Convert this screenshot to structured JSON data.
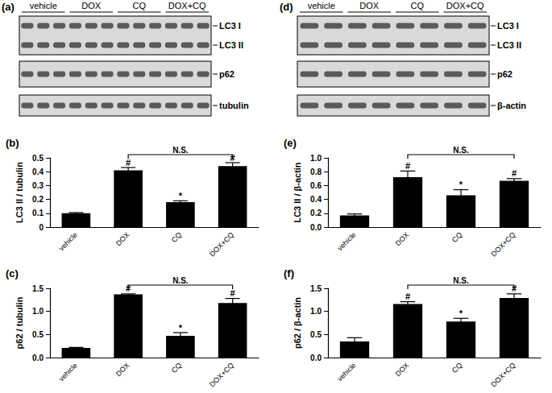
{
  "chart_data": [
    {
      "type": "bar",
      "panel": "(b)",
      "ylabel": "LC3 II / tubulin",
      "categories": [
        "vehicle",
        "DOX",
        "CQ",
        "DOX+CQ"
      ],
      "values": [
        0.1,
        0.41,
        0.18,
        0.44
      ],
      "errors": [
        0.005,
        0.02,
        0.01,
        0.025
      ],
      "color": "#000000",
      "ylim": [
        0,
        0.5
      ],
      "yticks": [
        0,
        0.1,
        0.2,
        0.3,
        0.4,
        0.5
      ],
      "grid": false,
      "marks": [
        null,
        "#",
        "*",
        "#"
      ],
      "comparison": {
        "from": "DOX",
        "to": "DOX+CQ",
        "label": "N.S."
      }
    },
    {
      "type": "bar",
      "panel": "(c)",
      "ylabel": "p62 / tubulin",
      "categories": [
        "vehicle",
        "DOX",
        "CQ",
        "DOX+CQ"
      ],
      "values": [
        0.21,
        1.37,
        0.47,
        1.18
      ],
      "errors": [
        0.01,
        0.01,
        0.07,
        0.1
      ],
      "color": "#000000",
      "ylim": [
        0,
        1.5
      ],
      "yticks": [
        {
          "value": 0,
          "label": "0.0"
        },
        0.5,
        {
          "value": 1,
          "label": "1.0"
        },
        1.5
      ],
      "grid": false,
      "marks": [
        null,
        "#",
        "*",
        "#"
      ],
      "comparison": {
        "from": "DOX",
        "to": "DOX+CQ",
        "label": "N.S."
      }
    },
    {
      "type": "bar",
      "panel": "(e)",
      "ylabel": "LC3 II / β-actin",
      "categories": [
        "vehicle",
        "DOX",
        "CQ",
        "DOX+CQ"
      ],
      "values": [
        0.17,
        0.72,
        0.46,
        0.67
      ],
      "errors": [
        0.02,
        0.09,
        0.08,
        0.03
      ],
      "color": "#000000",
      "ylim": [
        0,
        1
      ],
      "yticks": [
        {
          "value": 0,
          "label": "0.0"
        },
        0.2,
        0.4,
        0.6,
        0.8,
        {
          "value": 1,
          "label": "1.0"
        }
      ],
      "grid": false,
      "marks": [
        null,
        "#",
        "*",
        "#"
      ],
      "comparison": {
        "from": "DOX",
        "to": "DOX+CQ",
        "label": "N.S."
      }
    },
    {
      "type": "bar",
      "panel": "(f)",
      "ylabel": "p62 / β-actin",
      "categories": [
        "vehicle",
        "DOX",
        "CQ",
        "DOX+CQ"
      ],
      "values": [
        0.35,
        1.16,
        0.78,
        1.29
      ],
      "errors": [
        0.08,
        0.05,
        0.07,
        0.09
      ],
      "color": "#000000",
      "ylim": [
        0,
        1.5
      ],
      "yticks": [
        {
          "value": 0,
          "label": "0.0"
        },
        0.5,
        {
          "value": 1,
          "label": "1.0"
        },
        1.5
      ],
      "grid": false,
      "marks": [
        null,
        "#",
        "*",
        "#"
      ],
      "comparison": {
        "from": "DOX",
        "to": "DOX+CQ",
        "label": "N.S."
      }
    }
  ],
  "blots": [
    {
      "panel": "(a)",
      "groups": [
        "vehicle",
        "DOX",
        "CQ",
        "DOX+CQ"
      ],
      "rows": [
        [
          "LC3 I",
          "LC3 II"
        ],
        [
          "p62"
        ],
        [
          "tubulin"
        ]
      ]
    },
    {
      "panel": "(d)",
      "groups": [
        "vehicle",
        "DOX",
        "CQ",
        "DOX+CQ"
      ],
      "rows": [
        [
          "LC3 I",
          "LC3 II"
        ],
        [
          "p62"
        ],
        [
          "β-actin"
        ]
      ]
    }
  ]
}
